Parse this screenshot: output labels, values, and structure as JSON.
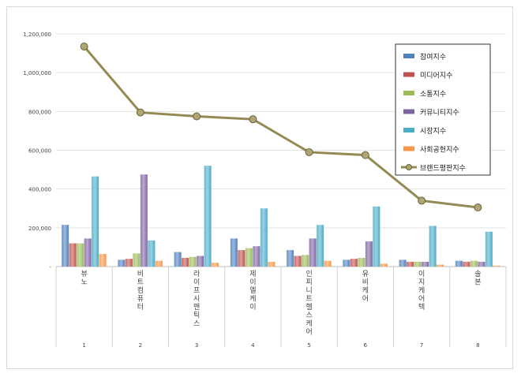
{
  "chart_data": {
    "type": "bar",
    "title": "",
    "xlabel": "",
    "ylabel": "",
    "ylim": [
      0,
      1200000
    ],
    "yticks": [
      0,
      200000,
      400000,
      600000,
      800000,
      1000000,
      1200000
    ],
    "ytick_labels": [
      "-",
      "200,000",
      "400,000",
      "600,000",
      "800,000",
      "1,000,000",
      "1,200,000"
    ],
    "grid": true,
    "legend_position": "top-right",
    "categories": [
      "뷰노",
      "비트컴퓨터",
      "라이프시맨틱스",
      "제이엘케이",
      "인피니트헬스케어",
      "유비케어",
      "이지케어텍",
      "솔본"
    ],
    "ranks": [
      "1",
      "2",
      "3",
      "4",
      "5",
      "6",
      "7",
      "8"
    ],
    "series": [
      {
        "name": "참여지수",
        "color": "#4f81bd",
        "values": [
          215000,
          35000,
          75000,
          145000,
          85000,
          35000,
          35000,
          30000
        ]
      },
      {
        "name": "미디어지수",
        "color": "#c0504d",
        "values": [
          120000,
          40000,
          45000,
          85000,
          55000,
          40000,
          25000,
          25000
        ]
      },
      {
        "name": "소통지수",
        "color": "#9bbb59",
        "values": [
          120000,
          68000,
          50000,
          95000,
          60000,
          45000,
          25000,
          30000
        ]
      },
      {
        "name": "커뮤니티지수",
        "color": "#8064a2",
        "values": [
          145000,
          475000,
          55000,
          105000,
          145000,
          130000,
          25000,
          25000
        ]
      },
      {
        "name": "시장지수",
        "color": "#4bacc6",
        "values": [
          465000,
          135000,
          520000,
          300000,
          215000,
          310000,
          210000,
          180000
        ]
      },
      {
        "name": "사회공헌지수",
        "color": "#f79646",
        "values": [
          65000,
          30000,
          20000,
          25000,
          30000,
          15000,
          10000,
          5000
        ]
      }
    ],
    "line_series": {
      "name": "브랜드평판지수",
      "color": "#948a54",
      "values": [
        1135000,
        795000,
        775000,
        760000,
        590000,
        575000,
        340000,
        305000
      ]
    }
  }
}
